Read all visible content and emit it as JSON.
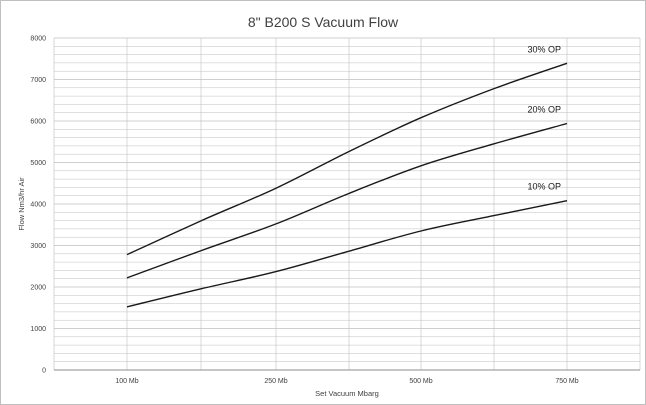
{
  "chart_data": {
    "type": "line",
    "title": "8\" B200 S Vacuum Flow",
    "xlabel": "Set Vacuum Mbarg",
    "ylabel": "Flow Nm3/hr Air",
    "categories": [
      "100 Mb",
      "250 Mb",
      "500 Mb",
      "750 Mb"
    ],
    "ylim": [
      0,
      8000
    ],
    "yticks": [
      0,
      1000,
      2000,
      3000,
      4000,
      5000,
      6000,
      7000,
      8000
    ],
    "grid": true,
    "series": [
      {
        "name": "10% OP",
        "x": [
          0,
          0.5,
          1,
          1.5,
          2,
          2.5,
          3
        ],
        "values": [
          1520,
          1960,
          2370,
          2860,
          3350,
          3720,
          4080
        ]
      },
      {
        "name": "20% OP",
        "x": [
          0,
          0.5,
          1,
          1.5,
          2,
          2.5,
          3
        ],
        "values": [
          2220,
          2880,
          3520,
          4250,
          4920,
          5450,
          5940
        ]
      },
      {
        "name": "30% OP",
        "x": [
          0,
          0.5,
          1,
          1.5,
          2,
          2.5,
          3
        ],
        "values": [
          2780,
          3600,
          4380,
          5260,
          6080,
          6780,
          7390
        ]
      }
    ],
    "colors": {
      "line": "#1a1a1a",
      "grid": "#bfbfbf",
      "text": "#404040"
    }
  }
}
